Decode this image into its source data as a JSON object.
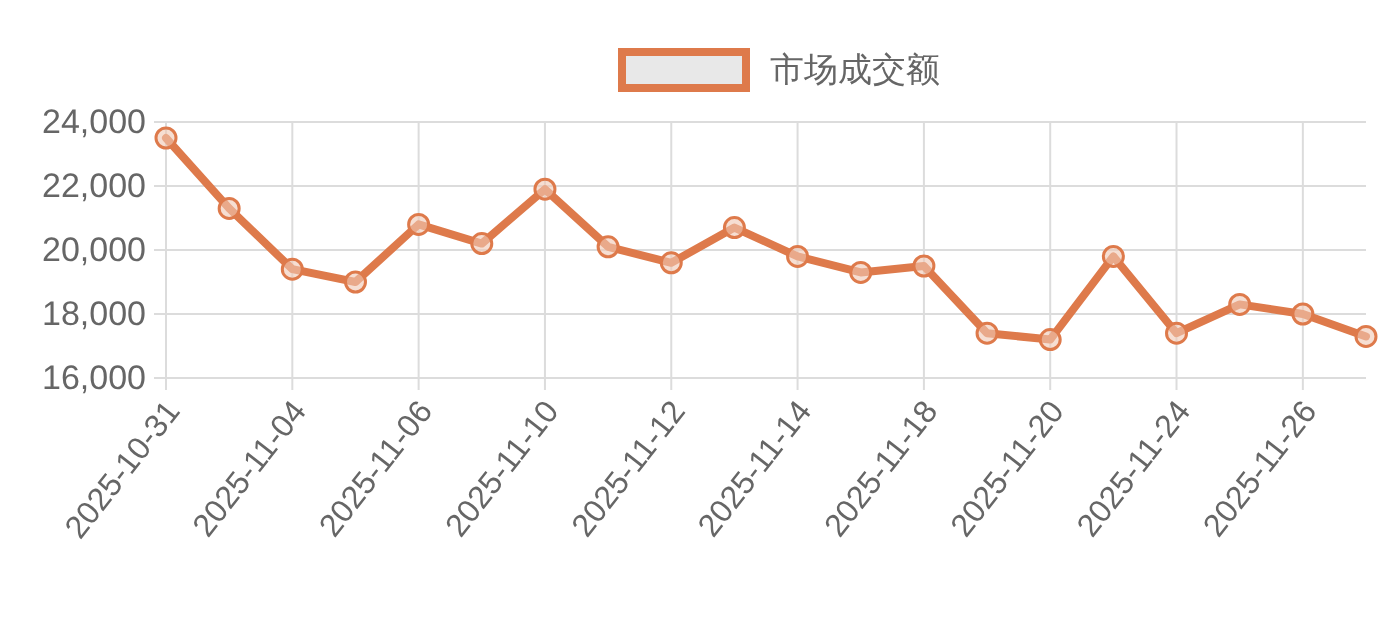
{
  "chart_data": {
    "type": "line",
    "categories": [
      "2025-10-31",
      null,
      "2025-11-04",
      null,
      "2025-11-06",
      null,
      "2025-11-10",
      null,
      "2025-11-12",
      null,
      "2025-11-14",
      null,
      "2025-11-18",
      null,
      "2025-11-20",
      null,
      "2025-11-24",
      null,
      "2025-11-26",
      null
    ],
    "series": [
      {
        "name": "市场成交额",
        "color": "#de7a4b",
        "values": [
          23500,
          21300,
          19400,
          19000,
          20800,
          20200,
          21900,
          20100,
          19600,
          20700,
          19800,
          19300,
          19500,
          17400,
          17200,
          19800,
          17400,
          18300,
          18000,
          17300
        ]
      }
    ],
    "ylim": [
      16000,
      24000
    ],
    "yticks": [
      {
        "value": 16000,
        "label": "16,000"
      },
      {
        "value": 18000,
        "label": "18,000"
      },
      {
        "value": 20000,
        "label": "20,000"
      },
      {
        "value": 22000,
        "label": "22,000"
      },
      {
        "value": 24000,
        "label": "24,000"
      }
    ],
    "grid": true,
    "legend": "top",
    "marker": "circle",
    "line_style": "solid"
  }
}
